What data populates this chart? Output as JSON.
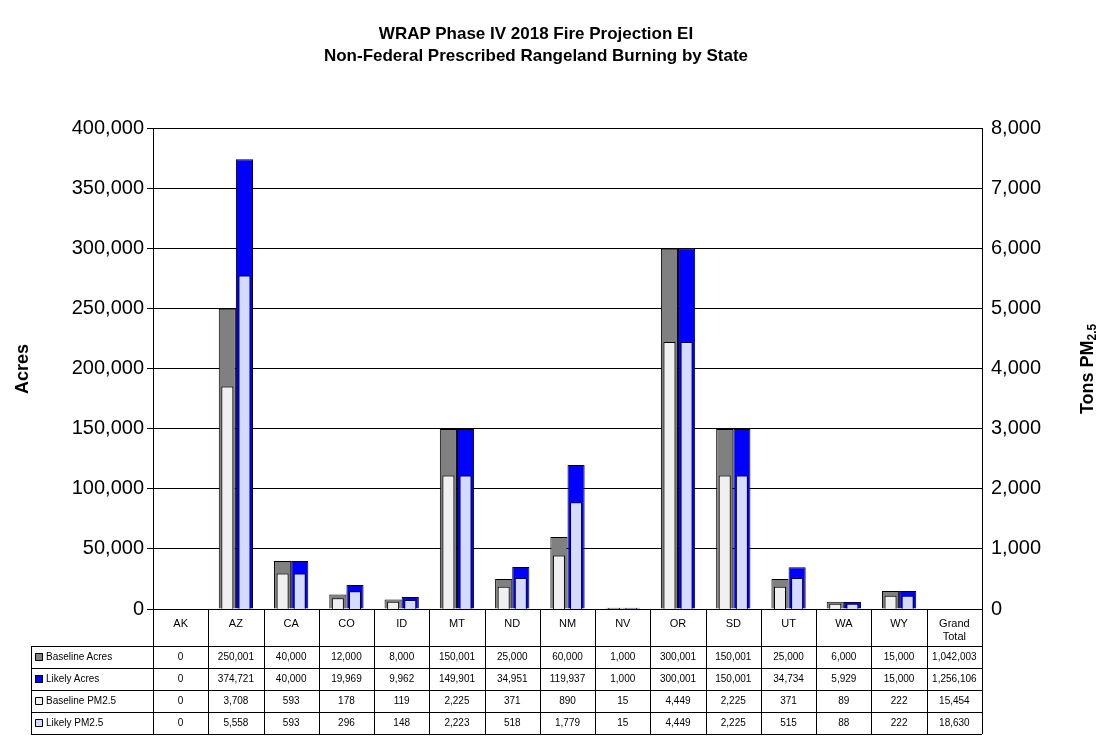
{
  "chart_data": {
    "type": "bar",
    "title": "WRAP Phase IV 2018 Fire Projection EI",
    "subtitle": "Non-Federal Prescribed Rangeland Burning by State",
    "ylabel": "Acres",
    "y2label": "Tons PM$_{2.5}$",
    "categories": [
      "AK",
      "AZ",
      "CA",
      "CO",
      "ID",
      "MT",
      "ND",
      "NM",
      "NV",
      "OR",
      "SD",
      "UT",
      "WA",
      "WY",
      "Grand Total"
    ],
    "series": [
      {
        "name": "Baseline Acres",
        "color": "#808080",
        "values": [
          0,
          250001,
          40000,
          12000,
          8000,
          150001,
          25000,
          60000,
          1000,
          300001,
          150001,
          25000,
          6000,
          15000,
          null
        ],
        "value_labels": [
          "0",
          "250,001",
          "40,000",
          "12,000",
          "8,000",
          "150,001",
          "25,000",
          "60,000",
          "1,000",
          "300,001",
          "150,001",
          "25,000",
          "6,000",
          "15,000",
          "1,042,003"
        ]
      },
      {
        "name": "Likely Acres",
        "color": "#0000ff",
        "values": [
          0,
          374721,
          40000,
          19969,
          9962,
          149901,
          34951,
          119937,
          1000,
          300001,
          150001,
          34734,
          5929,
          15000,
          null
        ],
        "value_labels": [
          "0",
          "374,721",
          "40,000",
          "19,969",
          "9,962",
          "149,901",
          "34,951",
          "119,937",
          "1,000",
          "300,001",
          "150,001",
          "34,734",
          "5,929",
          "15,000",
          "1,256,106"
        ]
      },
      {
        "name": "Baseline PM2.5",
        "color": "#f0f0f0",
        "axis": "y2",
        "values": [
          0,
          3708,
          593,
          178,
          119,
          2225,
          371,
          890,
          15,
          4449,
          2225,
          371,
          89,
          222,
          null
        ],
        "value_labels": [
          "0",
          "3,708",
          "593",
          "178",
          "119",
          "2,225",
          "371",
          "890",
          "15",
          "4,449",
          "2,225",
          "371",
          "89",
          "222",
          "15,454"
        ]
      },
      {
        "name": "Likely PM2.5",
        "color": "#d4dbff",
        "axis": "y2",
        "values": [
          0,
          5558,
          593,
          296,
          148,
          2223,
          518,
          1779,
          15,
          4449,
          2225,
          515,
          88,
          222,
          null
        ],
        "value_labels": [
          "0",
          "5,558",
          "593",
          "296",
          "148",
          "2,223",
          "518",
          "1,779",
          "15",
          "4,449",
          "2,225",
          "515",
          "88",
          "222",
          "18,630"
        ]
      }
    ],
    "ylim": [
      0,
      400000
    ],
    "yticks": [
      0,
      {
        "value": 50000,
        "label": "50,000"
      },
      {
        "value": 100000,
        "label": "100,000"
      },
      {
        "value": 150000,
        "label": "150,000"
      },
      {
        "value": 200000,
        "label": "200,000"
      },
      {
        "value": 250000,
        "label": "250,000"
      },
      {
        "value": 300000,
        "label": "300,000"
      },
      {
        "value": 350000,
        "label": "350,000"
      },
      {
        "value": 400000,
        "label": "400,000"
      }
    ],
    "y2lim": [
      0,
      8000
    ],
    "y2ticks": [
      0,
      {
        "value": 1000,
        "label": "1,000"
      },
      {
        "value": 2000,
        "label": "2,000"
      },
      {
        "value": 3000,
        "label": "3,000"
      },
      {
        "value": 4000,
        "label": "4,000"
      },
      {
        "value": 5000,
        "label": "5,000"
      },
      {
        "value": 6000,
        "label": "6,000"
      },
      {
        "value": 7000,
        "label": "7,000"
      },
      {
        "value": 8000,
        "label": "8,000"
      }
    ],
    "grid": "y",
    "legend": "bottom"
  }
}
